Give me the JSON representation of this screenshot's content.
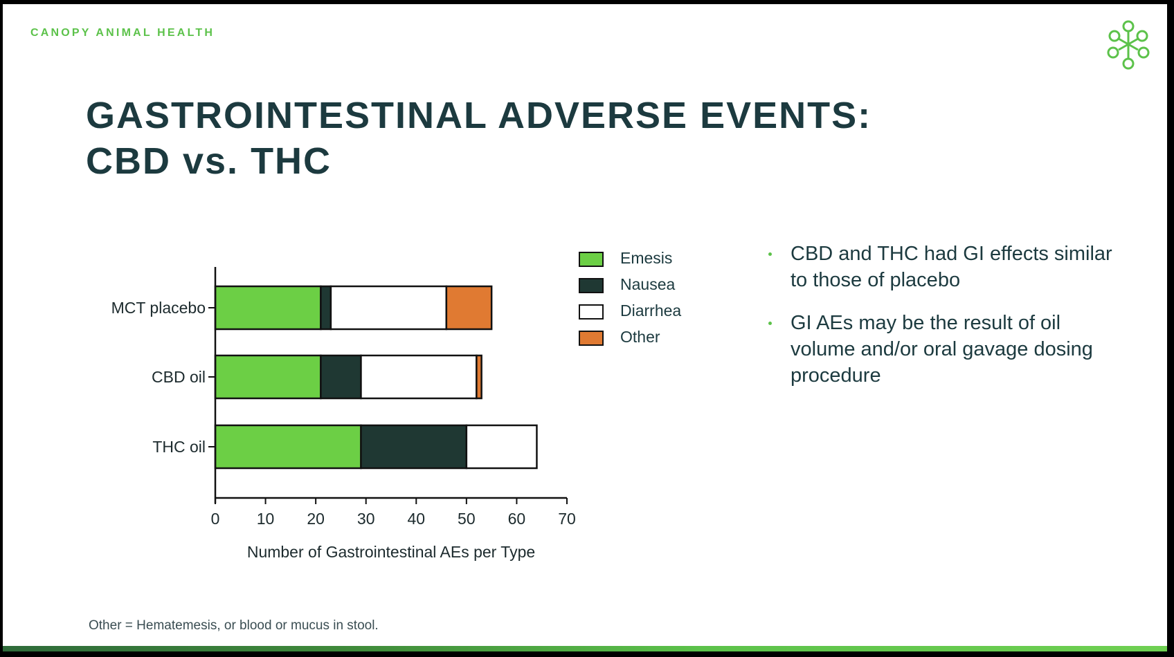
{
  "brand": "CANOPY ANIMAL HEALTH",
  "logo_icon": "leaf-cluster-logo-icon",
  "title_line1": "GASTROINTESTINAL ADVERSE EVENTS:",
  "title_line2": "CBD vs. THC",
  "chart_data": {
    "type": "bar",
    "orientation": "horizontal",
    "stacked": true,
    "categories": [
      "MCT placebo",
      "CBD oil",
      "THC oil"
    ],
    "series": [
      {
        "name": "Emesis",
        "color": "#6ccf45",
        "values": [
          21,
          21,
          29
        ]
      },
      {
        "name": "Nausea",
        "color": "#1f3833",
        "values": [
          2,
          8,
          21
        ]
      },
      {
        "name": "Diarrhea",
        "color": "#ffffff",
        "values": [
          23,
          23,
          14
        ]
      },
      {
        "name": "Other",
        "color": "#e07a32",
        "values": [
          9,
          1,
          0
        ]
      }
    ],
    "xlabel": "Number of Gastrointestinal AEs per Type",
    "xlim": [
      0,
      70
    ],
    "xticks": [
      0,
      10,
      20,
      30,
      40,
      50,
      60,
      70
    ],
    "grid": false,
    "legend": "right"
  },
  "bullets": [
    "CBD and THC had GI effects similar to those of placebo",
    "GI AEs may be the result of oil volume and/or oral gavage dosing procedure"
  ],
  "footnote": "Other = Hematemesis, or blood or mucus in stool."
}
